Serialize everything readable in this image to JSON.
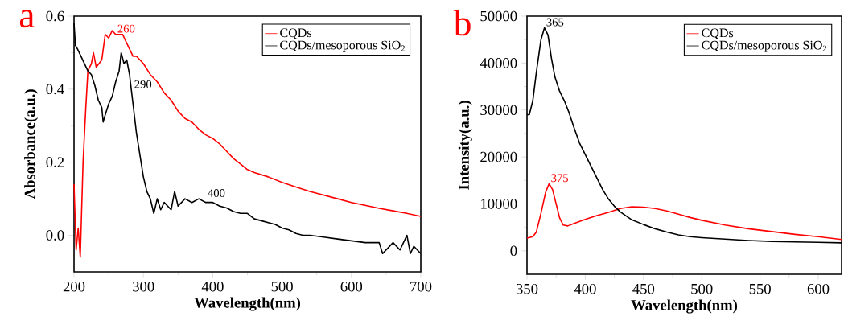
{
  "chart_data": [
    {
      "type": "line",
      "title": "a",
      "xlabel": "Wavelength(nm)",
      "ylabel": "Absorbance(a.u.)",
      "xlim": [
        200,
        700
      ],
      "ylim": [
        -0.1,
        0.6
      ],
      "xticks": [
        200,
        300,
        400,
        500,
        600,
        700
      ],
      "yticks": [
        {
          "value": 0,
          "label": "0.0"
        },
        {
          "value": 0.2,
          "label": "0.2"
        },
        {
          "value": 0.4,
          "label": "0.4"
        },
        {
          "value": 0.6,
          "label": "0.6"
        }
      ],
      "legend": "top right",
      "grid": false,
      "marker": "none",
      "line_style": "solid",
      "series": [
        {
          "name": "CQDs",
          "color": "#ff0000",
          "x": [
            200,
            203,
            206,
            209,
            213,
            217,
            220,
            225,
            228,
            232,
            240,
            245,
            250,
            255,
            260,
            265,
            270,
            275,
            280,
            285,
            290,
            300,
            310,
            320,
            330,
            340,
            350,
            360,
            370,
            380,
            390,
            400,
            410,
            420,
            430,
            440,
            450,
            460,
            480,
            500,
            520,
            540,
            560,
            580,
            600,
            620,
            640,
            660,
            680,
            700
          ],
          "values": [
            0.14,
            -0.04,
            0.02,
            -0.06,
            0.2,
            0.35,
            0.45,
            0.47,
            0.5,
            0.46,
            0.48,
            0.55,
            0.54,
            0.56,
            0.55,
            0.55,
            0.55,
            0.53,
            0.51,
            0.49,
            0.49,
            0.47,
            0.44,
            0.42,
            0.39,
            0.37,
            0.34,
            0.32,
            0.31,
            0.29,
            0.275,
            0.265,
            0.25,
            0.23,
            0.21,
            0.195,
            0.18,
            0.172,
            0.16,
            0.145,
            0.132,
            0.12,
            0.11,
            0.1,
            0.09,
            0.082,
            0.074,
            0.067,
            0.06,
            0.052
          ]
        },
        {
          "name": "CQDs/mesoporous SiO$_{2}$",
          "color": "#000000",
          "x": [
            200,
            202,
            205,
            210,
            215,
            220,
            225,
            230,
            235,
            240,
            242,
            245,
            250,
            255,
            260,
            265,
            268,
            272,
            276,
            280,
            285,
            290,
            295,
            300,
            305,
            310,
            315,
            320,
            325,
            330,
            340,
            345,
            350,
            360,
            370,
            380,
            390,
            400,
            410,
            420,
            430,
            440,
            450,
            460,
            470,
            480,
            490,
            500,
            510,
            520,
            530,
            540,
            560,
            580,
            600,
            620,
            640,
            645,
            660,
            670,
            680,
            685,
            690,
            700
          ],
          "values": [
            0.58,
            0.52,
            0.51,
            0.49,
            0.47,
            0.45,
            0.44,
            0.41,
            0.37,
            0.35,
            0.31,
            0.33,
            0.36,
            0.38,
            0.42,
            0.45,
            0.5,
            0.47,
            0.48,
            0.44,
            0.36,
            0.28,
            0.22,
            0.16,
            0.12,
            0.1,
            0.06,
            0.1,
            0.07,
            0.09,
            0.07,
            0.12,
            0.08,
            0.1,
            0.09,
            0.1,
            0.09,
            0.09,
            0.08,
            0.075,
            0.065,
            0.06,
            0.06,
            0.045,
            0.04,
            0.035,
            0.03,
            0.02,
            0.015,
            0.005,
            0.0,
            0.0,
            -0.005,
            -0.01,
            -0.015,
            -0.02,
            -0.02,
            -0.05,
            -0.02,
            -0.04,
            0.0,
            -0.05,
            -0.03,
            -0.05
          ]
        }
      ],
      "annotations": [
        {
          "text": "260",
          "x": 260,
          "y": 0.55
        },
        {
          "text": "290",
          "x": 278,
          "y": 0.47
        },
        {
          "text": "400",
          "x": 390,
          "y": 0.1
        }
      ]
    },
    {
      "type": "line",
      "title": "b",
      "xlabel": "Wavelength(nm)",
      "ylabel": "Intensity(a.u.)",
      "xlim": [
        350,
        620
      ],
      "ylim": [
        -5000,
        50000
      ],
      "xticks": [
        350,
        400,
        450,
        500,
        550,
        600
      ],
      "yticks": [
        0,
        10000,
        20000,
        30000,
        40000,
        50000
      ],
      "legend": "top right",
      "grid": false,
      "marker": "none",
      "line_style": "solid",
      "series": [
        {
          "name": "CQDs",
          "color": "#ff0000",
          "x": [
            350,
            355,
            358,
            362,
            366,
            369,
            372,
            375,
            378,
            381,
            385,
            390,
            400,
            410,
            420,
            430,
            440,
            450,
            460,
            470,
            480,
            490,
            500,
            520,
            540,
            560,
            580,
            600,
            620
          ],
          "values": [
            2700,
            3000,
            4000,
            8000,
            12500,
            14300,
            13000,
            10000,
            7000,
            5500,
            5300,
            5800,
            6700,
            7500,
            8200,
            9000,
            9400,
            9300,
            9000,
            8500,
            7800,
            7100,
            6500,
            5500,
            4700,
            4100,
            3500,
            3000,
            2400
          ]
        },
        {
          "name": "CQDs/mesoporous SiO$_{2}$",
          "color": "#000000",
          "x": [
            350,
            352,
            355,
            358,
            362,
            365,
            368,
            371,
            374,
            378,
            382,
            386,
            390,
            395,
            400,
            405,
            410,
            415,
            420,
            425,
            430,
            440,
            450,
            460,
            470,
            480,
            490,
            500,
            520,
            540,
            560,
            580,
            600,
            620
          ],
          "values": [
            29000,
            29000,
            32000,
            38000,
            45000,
            47500,
            46000,
            41000,
            37000,
            34000,
            32000,
            29500,
            26500,
            23000,
            20500,
            18000,
            15500,
            13000,
            11000,
            9500,
            8300,
            6600,
            5600,
            4700,
            4000,
            3400,
            3000,
            2800,
            2500,
            2200,
            2000,
            1900,
            1800,
            1700
          ]
        }
      ],
      "annotations": [
        {
          "text": "365",
          "x": 365,
          "y": 47500
        },
        {
          "text": "375",
          "x": 369,
          "y": 14300
        }
      ]
    }
  ]
}
